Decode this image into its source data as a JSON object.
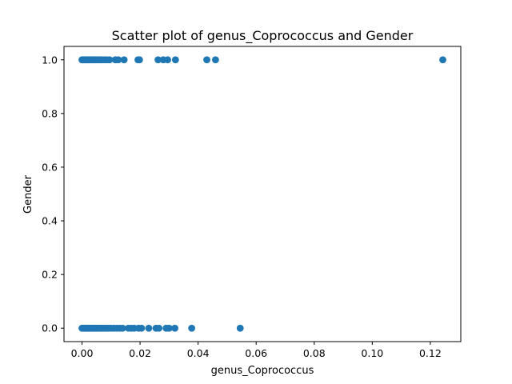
{
  "chart_data": {
    "type": "scatter",
    "title": "Scatter plot of genus_Coprococcus and Gender",
    "xlabel": "genus_Coprococcus",
    "ylabel": "Gender",
    "xlim": [
      -0.0062,
      0.1305
    ],
    "ylim": [
      -0.05,
      1.05
    ],
    "x_ticks": [
      0.0,
      0.02,
      0.04,
      0.06,
      0.08,
      0.1,
      0.12
    ],
    "x_tick_labels": [
      "0.00",
      "0.02",
      "0.04",
      "0.06",
      "0.08",
      "0.10",
      "0.12"
    ],
    "y_ticks": [
      0.0,
      0.2,
      0.4,
      0.6,
      0.8,
      1.0
    ],
    "y_tick_labels": [
      "0.0",
      "0.2",
      "0.4",
      "0.6",
      "0.8",
      "1.0"
    ],
    "grid": false,
    "marker_color": "#1f77b4",
    "points": [
      {
        "x": 0.0,
        "y": 1
      },
      {
        "x": 0.0003,
        "y": 1
      },
      {
        "x": 0.0006,
        "y": 1
      },
      {
        "x": 0.0009,
        "y": 1
      },
      {
        "x": 0.0012,
        "y": 1
      },
      {
        "x": 0.0015,
        "y": 1
      },
      {
        "x": 0.0018,
        "y": 1
      },
      {
        "x": 0.0021,
        "y": 1
      },
      {
        "x": 0.0024,
        "y": 1
      },
      {
        "x": 0.0027,
        "y": 1
      },
      {
        "x": 0.003,
        "y": 1
      },
      {
        "x": 0.0034,
        "y": 1
      },
      {
        "x": 0.0038,
        "y": 1
      },
      {
        "x": 0.0042,
        "y": 1
      },
      {
        "x": 0.0046,
        "y": 1
      },
      {
        "x": 0.005,
        "y": 1
      },
      {
        "x": 0.0055,
        "y": 1
      },
      {
        "x": 0.0062,
        "y": 1
      },
      {
        "x": 0.007,
        "y": 1
      },
      {
        "x": 0.0078,
        "y": 1
      },
      {
        "x": 0.0086,
        "y": 1
      },
      {
        "x": 0.0095,
        "y": 1
      },
      {
        "x": 0.0115,
        "y": 1
      },
      {
        "x": 0.0125,
        "y": 1
      },
      {
        "x": 0.0145,
        "y": 1
      },
      {
        "x": 0.0193,
        "y": 1
      },
      {
        "x": 0.0198,
        "y": 1
      },
      {
        "x": 0.0262,
        "y": 1
      },
      {
        "x": 0.028,
        "y": 1
      },
      {
        "x": 0.0295,
        "y": 1
      },
      {
        "x": 0.0322,
        "y": 1
      },
      {
        "x": 0.043,
        "y": 1
      },
      {
        "x": 0.046,
        "y": 1
      },
      {
        "x": 0.1243,
        "y": 1
      },
      {
        "x": 0.0,
        "y": 0
      },
      {
        "x": 0.0003,
        "y": 0
      },
      {
        "x": 0.0006,
        "y": 0
      },
      {
        "x": 0.0009,
        "y": 0
      },
      {
        "x": 0.0012,
        "y": 0
      },
      {
        "x": 0.0015,
        "y": 0
      },
      {
        "x": 0.0018,
        "y": 0
      },
      {
        "x": 0.0021,
        "y": 0
      },
      {
        "x": 0.0024,
        "y": 0
      },
      {
        "x": 0.0027,
        "y": 0
      },
      {
        "x": 0.003,
        "y": 0
      },
      {
        "x": 0.0034,
        "y": 0
      },
      {
        "x": 0.0038,
        "y": 0
      },
      {
        "x": 0.0042,
        "y": 0
      },
      {
        "x": 0.0046,
        "y": 0
      },
      {
        "x": 0.005,
        "y": 0
      },
      {
        "x": 0.0055,
        "y": 0
      },
      {
        "x": 0.006,
        "y": 0
      },
      {
        "x": 0.0066,
        "y": 0
      },
      {
        "x": 0.0072,
        "y": 0
      },
      {
        "x": 0.0078,
        "y": 0
      },
      {
        "x": 0.0085,
        "y": 0
      },
      {
        "x": 0.0092,
        "y": 0
      },
      {
        "x": 0.01,
        "y": 0
      },
      {
        "x": 0.011,
        "y": 0
      },
      {
        "x": 0.012,
        "y": 0
      },
      {
        "x": 0.013,
        "y": 0
      },
      {
        "x": 0.014,
        "y": 0
      },
      {
        "x": 0.016,
        "y": 0
      },
      {
        "x": 0.017,
        "y": 0
      },
      {
        "x": 0.018,
        "y": 0
      },
      {
        "x": 0.0195,
        "y": 0
      },
      {
        "x": 0.0205,
        "y": 0
      },
      {
        "x": 0.023,
        "y": 0
      },
      {
        "x": 0.0255,
        "y": 0
      },
      {
        "x": 0.0265,
        "y": 0
      },
      {
        "x": 0.029,
        "y": 0
      },
      {
        "x": 0.03,
        "y": 0
      },
      {
        "x": 0.032,
        "y": 0
      },
      {
        "x": 0.0378,
        "y": 0
      },
      {
        "x": 0.0545,
        "y": 0
      }
    ]
  }
}
